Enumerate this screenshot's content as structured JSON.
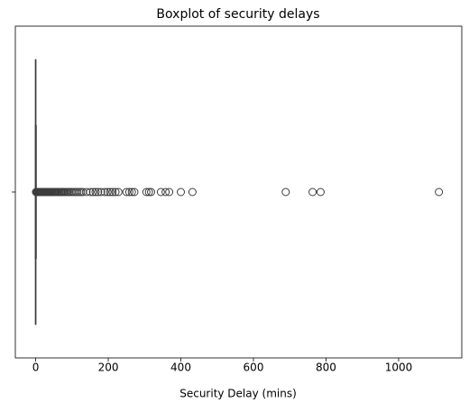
{
  "chart_data": {
    "type": "box",
    "title": "Boxplot of security delays",
    "x_label": "Security Delay (mins)",
    "categories": [
      null
    ],
    "boxes": [
      {
        "min": 0,
        "q1": 0,
        "median": 0,
        "q3": 0,
        "max": 0,
        "outliers": [
          1,
          2,
          3,
          4,
          5,
          6,
          7,
          8,
          9,
          10,
          11,
          12,
          13,
          14,
          15,
          16,
          17,
          18,
          19,
          20,
          22,
          24,
          26,
          28,
          30,
          32,
          34,
          36,
          38,
          40,
          42,
          45,
          48,
          50,
          53,
          56,
          59,
          62,
          65,
          68,
          71,
          74,
          77,
          80,
          84,
          88,
          92,
          96,
          100,
          105,
          110,
          115,
          120,
          125,
          130,
          140,
          150,
          158,
          165,
          172,
          180,
          190,
          198,
          205,
          212,
          220,
          228,
          250,
          258,
          265,
          272,
          305,
          312,
          318,
          345,
          358,
          368,
          400,
          432,
          689,
          763,
          785,
          1111
        ]
      }
    ],
    "color": "#3d3d3d",
    "xlim": [
      -56,
      1174
    ],
    "xticks": [
      0,
      200,
      400,
      600,
      800,
      1000
    ]
  }
}
